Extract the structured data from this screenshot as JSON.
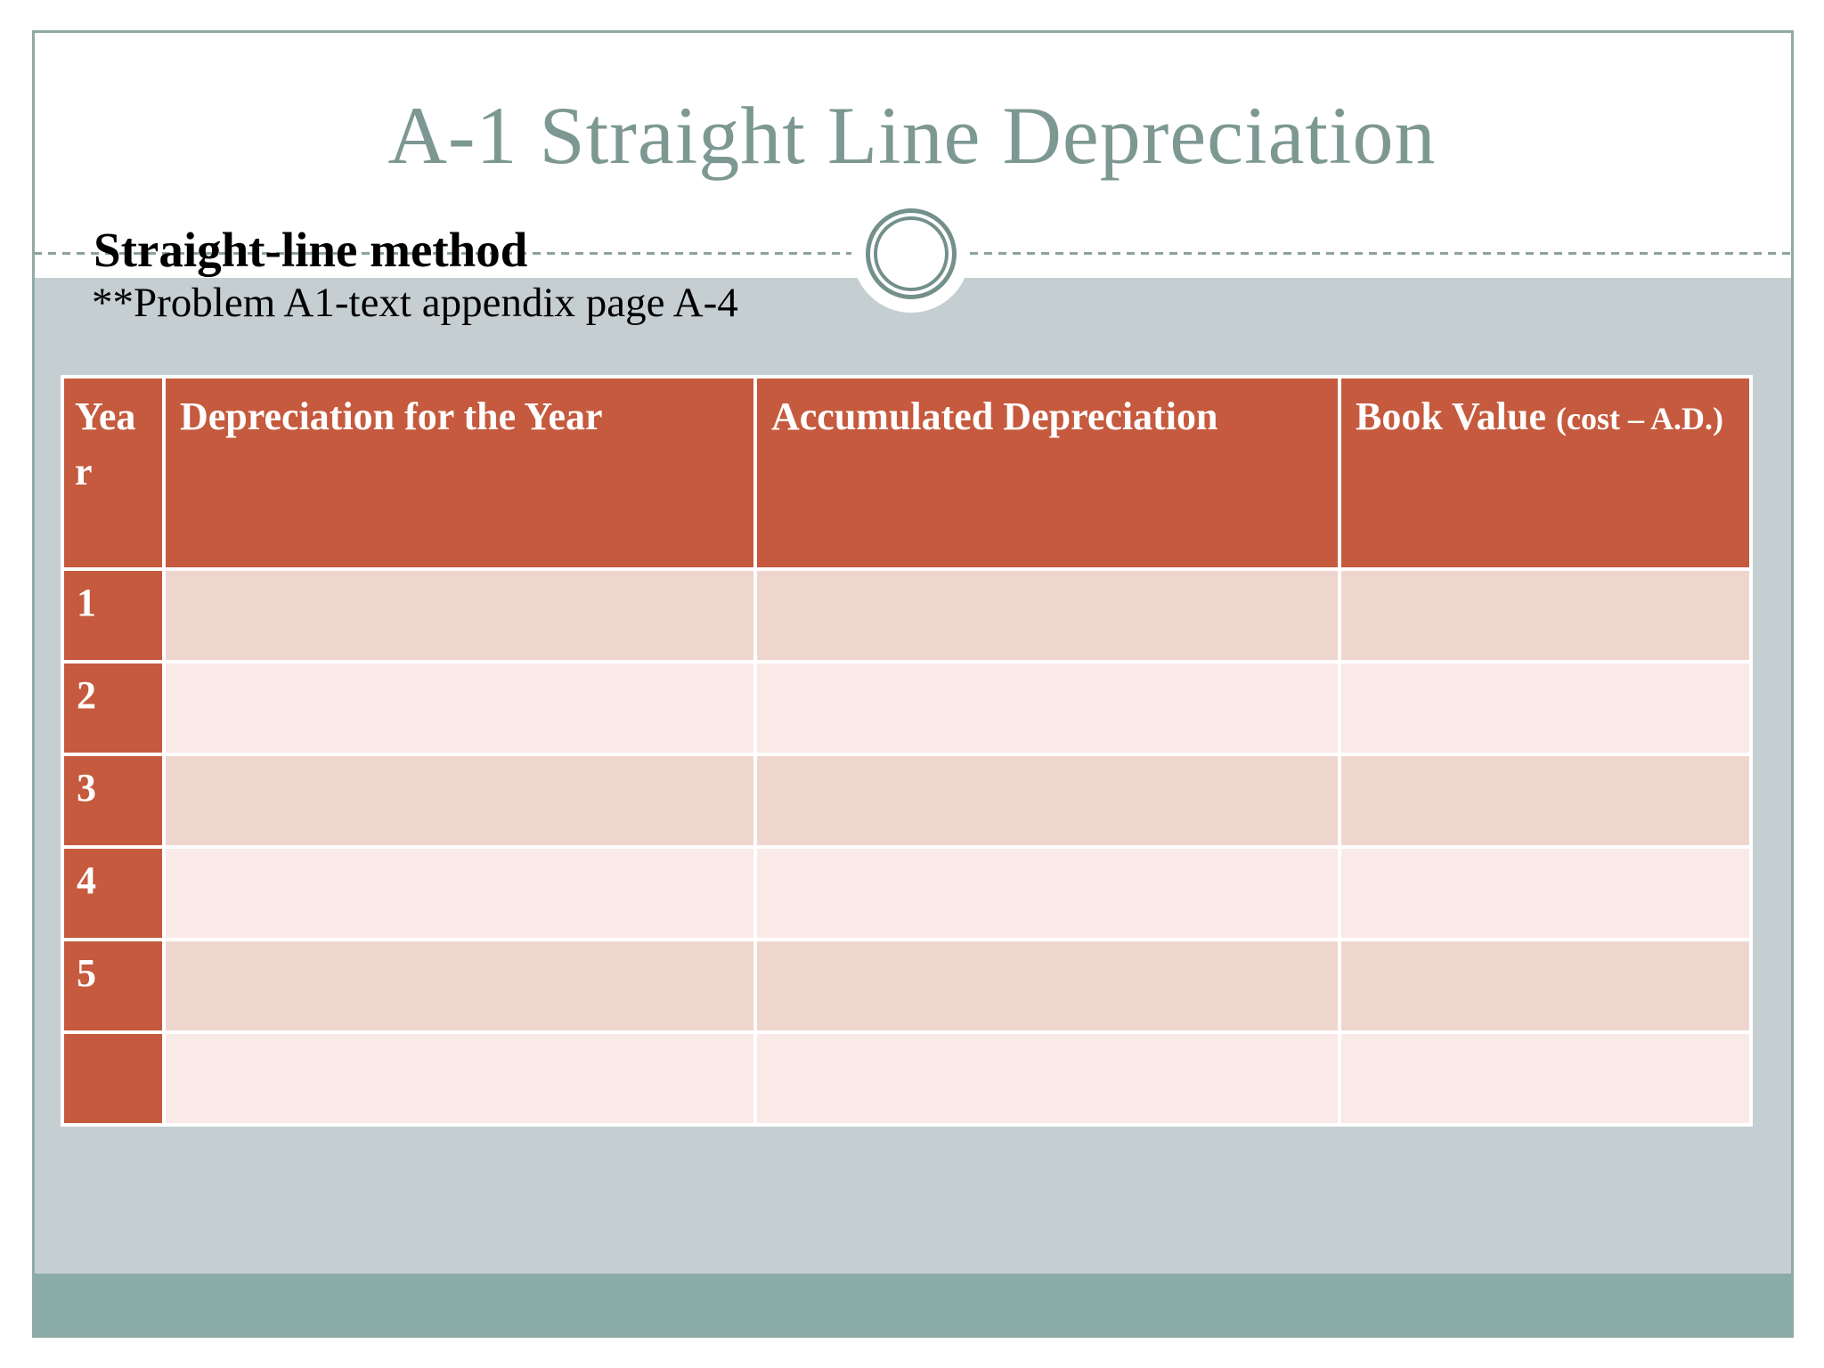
{
  "slide": {
    "title": "A-1 Straight Line Depreciation",
    "subtitle_bold": "Straight-line method",
    "subtitle_note": "**Problem A1-text appendix page A-4",
    "colors": {
      "title_text": "#7d9892",
      "accent_terracotta": "#c55a3e",
      "row_dark_pink": "#eed6ce",
      "row_light_pink": "#f9eae7",
      "background_gray": "#c5cfd2",
      "footer_band_teal": "#8aaca6",
      "frame_border": "#92aaa6",
      "dashed_line": "#8ba29e"
    }
  },
  "table": {
    "columns": [
      {
        "label": "Year"
      },
      {
        "label": "Depreciation for the Year"
      },
      {
        "label": "Accumulated Depreciation"
      },
      {
        "label": "Book Value",
        "sublabel": "(cost – A.D.)"
      }
    ],
    "rows": [
      {
        "year": "1",
        "depreciation_for_year": "",
        "accumulated_depreciation": "",
        "book_value": ""
      },
      {
        "year": "2",
        "depreciation_for_year": "",
        "accumulated_depreciation": "",
        "book_value": ""
      },
      {
        "year": "3",
        "depreciation_for_year": "",
        "accumulated_depreciation": "",
        "book_value": ""
      },
      {
        "year": "4",
        "depreciation_for_year": "",
        "accumulated_depreciation": "",
        "book_value": ""
      },
      {
        "year": "5",
        "depreciation_for_year": "",
        "accumulated_depreciation": "",
        "book_value": ""
      },
      {
        "year": "",
        "depreciation_for_year": "",
        "accumulated_depreciation": "",
        "book_value": ""
      }
    ]
  }
}
